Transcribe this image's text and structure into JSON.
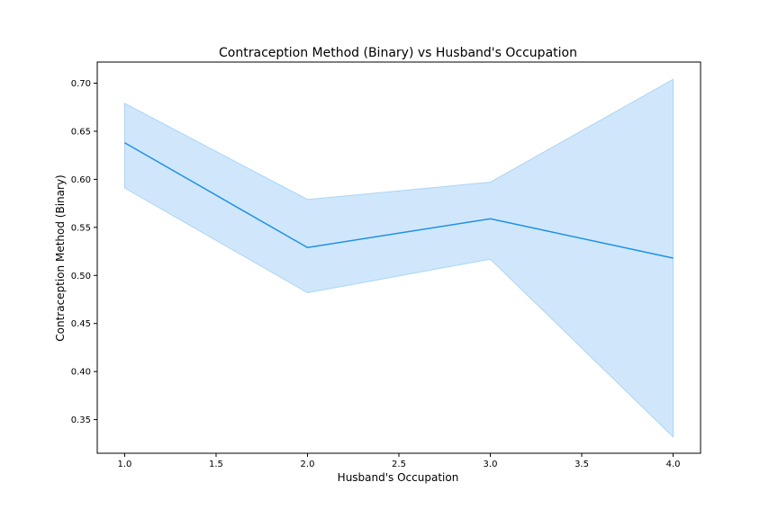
{
  "chart_data": {
    "type": "line",
    "title": "Contraception Method (Binary) vs Husband's Occupation",
    "xlabel": "Husband's Occupation",
    "ylabel": "Contraception Method (Binary)",
    "xlim": [
      0.85,
      4.15
    ],
    "ylim": [
      0.315,
      0.722
    ],
    "xticks": [
      1.0,
      1.5,
      2.0,
      2.5,
      3.0,
      3.5,
      4.0
    ],
    "xtick_labels": [
      "1.0",
      "1.5",
      "2.0",
      "2.5",
      "3.0",
      "3.5",
      "4.0"
    ],
    "yticks": [
      0.35,
      0.4,
      0.45,
      0.5,
      0.55,
      0.6,
      0.65,
      0.7
    ],
    "ytick_labels": [
      "0.35",
      "0.40",
      "0.45",
      "0.50",
      "0.55",
      "0.60",
      "0.65",
      "0.70"
    ],
    "grid": false,
    "series": [
      {
        "x": [
          1.0,
          2.0,
          3.0,
          4.0
        ],
        "y": [
          0.638,
          0.529,
          0.559,
          0.518
        ],
        "ci_lower": [
          0.591,
          0.482,
          0.517,
          0.332
        ],
        "ci_upper": [
          0.679,
          0.579,
          0.597,
          0.704
        ],
        "color": "#1e90e8",
        "band_color": "#a9d4f7"
      }
    ]
  }
}
